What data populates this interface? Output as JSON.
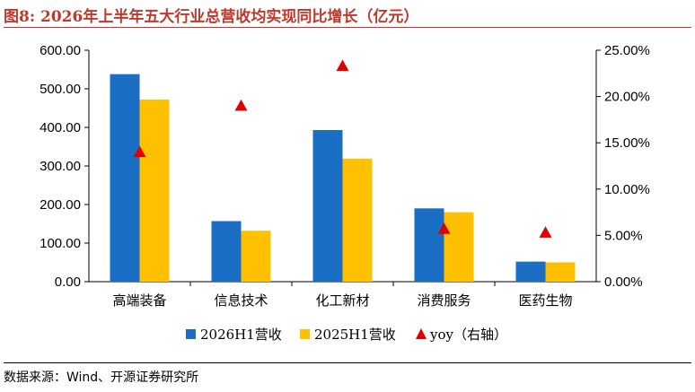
{
  "figure_title": "图8:  2026年上半年五大行业总营收均实现同比增长（亿元）",
  "source_note": "数据来源：Wind、开源证券研究所",
  "colors": {
    "title": "#c0382b",
    "series_2026": "#1a6fc4",
    "series_2025": "#ffc000",
    "yoy": "#e00000"
  },
  "chart_data": {
    "type": "bar",
    "categories": [
      "高端装备",
      "信息技术",
      "化工新材",
      "消费服务",
      "医药生物"
    ],
    "series": [
      {
        "name": "2026H1营收",
        "kind": "bar",
        "axis": "left",
        "values": [
          538,
          157,
          393,
          190,
          52
        ]
      },
      {
        "name": "2025H1营收",
        "kind": "bar",
        "axis": "left",
        "values": [
          472,
          132,
          319,
          180,
          50
        ]
      },
      {
        "name": "yoy（右轴）",
        "kind": "marker",
        "axis": "right",
        "values": [
          14.0,
          19.0,
          23.3,
          5.7,
          5.3
        ]
      }
    ],
    "ylim": [
      0,
      600
    ],
    "yticks": [
      "0.00",
      "100.00",
      "200.00",
      "300.00",
      "400.00",
      "500.00",
      "600.00"
    ],
    "y2lim": [
      0,
      25
    ],
    "y2ticks": [
      "0.00%",
      "5.00%",
      "10.00%",
      "15.00%",
      "20.00%",
      "25.00%"
    ],
    "xlabel": "",
    "ylabel": "",
    "grid": false,
    "legend_position": "bottom"
  }
}
